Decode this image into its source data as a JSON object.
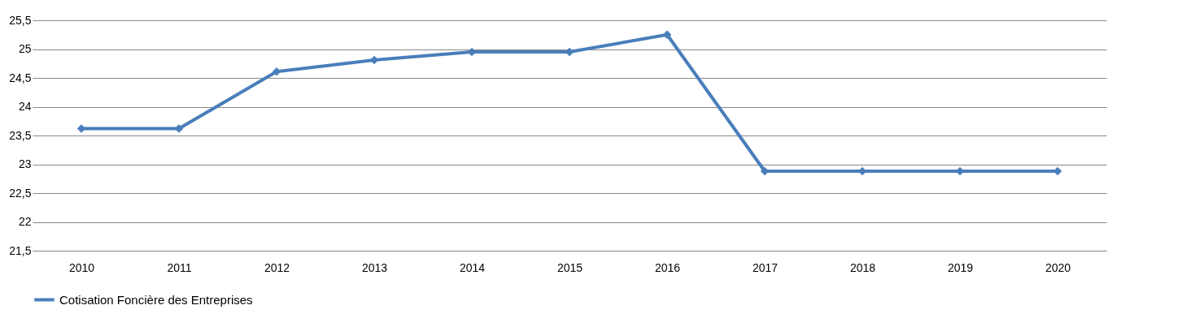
{
  "chart_data": {
    "type": "line",
    "categories": [
      "2010",
      "2011",
      "2012",
      "2013",
      "2014",
      "2015",
      "2016",
      "2017",
      "2018",
      "2019",
      "2020"
    ],
    "series": [
      {
        "name": "Cotisation Foncière des Entreprises",
        "color": "#4a7ebb",
        "values": [
          23.62,
          23.62,
          24.61,
          24.81,
          24.95,
          24.95,
          25.25,
          22.88,
          22.88,
          22.88,
          22.88
        ]
      }
    ],
    "ylim": [
      21.5,
      25.5
    ],
    "yticks": [
      {
        "value": 21.5,
        "label": "21,5"
      },
      22,
      {
        "value": 22.5,
        "label": "22,5"
      },
      23,
      {
        "value": 23.5,
        "label": "23,5"
      },
      24,
      {
        "value": 24.5,
        "label": "24,5"
      },
      25,
      {
        "value": 25.5,
        "label": "25,5"
      }
    ],
    "grid": "y",
    "legend": "bottom",
    "marker": "diamond",
    "line_style": "solid"
  }
}
